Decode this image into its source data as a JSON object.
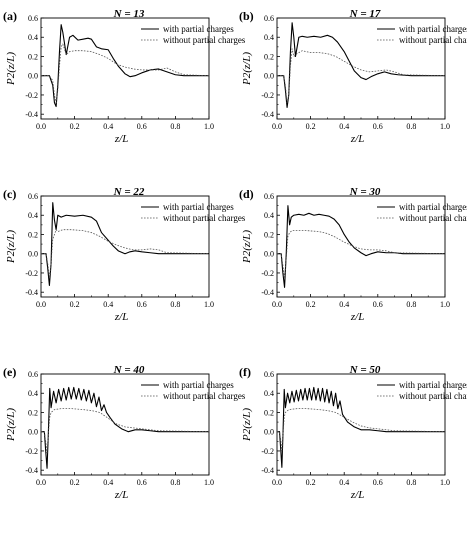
{
  "figure": {
    "xlabel": "z/L",
    "ylabel": "P2(z/L)",
    "xticks": [
      "0.0",
      "0.2",
      "0.4",
      "0.6",
      "0.8",
      "1.0"
    ],
    "yticks": [
      "-0.4",
      "-0.2",
      "0.0",
      "0.2",
      "0.4",
      "0.6"
    ],
    "xlim": [
      0,
      1
    ],
    "ylim": [
      -0.45,
      0.6
    ],
    "legend": [
      "with partial charges",
      "without partial charges"
    ],
    "colors": {
      "with": "#000000",
      "without": "#555555",
      "axis": "#000000"
    }
  },
  "chart_data": [
    {
      "type": "line",
      "panel": "(a)",
      "title": "N = 13",
      "xlabel": "z/L",
      "ylabel": "P2(z/L)",
      "xlim": [
        0,
        1
      ],
      "ylim": [
        -0.45,
        0.6
      ],
      "series": [
        {
          "name": "with partial charges",
          "style": "solid",
          "x": [
            0,
            0.05,
            0.07,
            0.08,
            0.09,
            0.1,
            0.11,
            0.12,
            0.13,
            0.15,
            0.17,
            0.19,
            0.22,
            0.25,
            0.28,
            0.3,
            0.33,
            0.36,
            0.4,
            0.43,
            0.46,
            0.5,
            0.53,
            0.56,
            0.6,
            0.65,
            0.7,
            0.75,
            0.8,
            0.85,
            1.0
          ],
          "y": [
            0,
            0,
            -0.1,
            -0.28,
            -0.32,
            -0.1,
            0.25,
            0.53,
            0.45,
            0.22,
            0.4,
            0.42,
            0.37,
            0.38,
            0.39,
            0.38,
            0.3,
            0.28,
            0.27,
            0.18,
            0.1,
            0.02,
            -0.01,
            0.0,
            0.03,
            0.06,
            0.07,
            0.04,
            0.01,
            0.0,
            0.0
          ]
        },
        {
          "name": "without partial charges",
          "style": "dotted",
          "x": [
            0,
            0.05,
            0.07,
            0.08,
            0.09,
            0.1,
            0.11,
            0.12,
            0.13,
            0.15,
            0.17,
            0.2,
            0.25,
            0.3,
            0.35,
            0.4,
            0.45,
            0.5,
            0.55,
            0.6,
            0.65,
            0.7,
            0.75,
            0.8,
            0.85,
            1.0
          ],
          "y": [
            0,
            0,
            -0.05,
            -0.2,
            -0.28,
            -0.15,
            0.1,
            0.3,
            0.33,
            0.22,
            0.25,
            0.26,
            0.26,
            0.25,
            0.22,
            0.18,
            0.12,
            0.09,
            0.07,
            0.06,
            0.06,
            0.06,
            0.08,
            0.04,
            0.01,
            0.0
          ]
        }
      ]
    },
    {
      "type": "line",
      "panel": "(b)",
      "title": "N = 17",
      "xlabel": "z/L",
      "ylabel": "P2(z/L)",
      "xlim": [
        0,
        1
      ],
      "ylim": [
        -0.45,
        0.6
      ],
      "series": [
        {
          "name": "with partial charges",
          "style": "solid",
          "x": [
            0,
            0.04,
            0.05,
            0.06,
            0.07,
            0.08,
            0.09,
            0.1,
            0.11,
            0.13,
            0.15,
            0.18,
            0.22,
            0.26,
            0.3,
            0.33,
            0.36,
            0.4,
            0.43,
            0.46,
            0.5,
            0.53,
            0.56,
            0.6,
            0.64,
            0.68,
            0.72,
            0.8,
            1.0
          ],
          "y": [
            0,
            0,
            -0.15,
            -0.33,
            -0.2,
            0.25,
            0.55,
            0.4,
            0.2,
            0.4,
            0.41,
            0.4,
            0.41,
            0.4,
            0.42,
            0.4,
            0.35,
            0.25,
            0.15,
            0.05,
            -0.02,
            -0.04,
            -0.01,
            0.02,
            0.04,
            0.02,
            0.01,
            0.0,
            0.0
          ]
        },
        {
          "name": "without partial charges",
          "style": "dotted",
          "x": [
            0,
            0.04,
            0.05,
            0.06,
            0.07,
            0.08,
            0.09,
            0.1,
            0.12,
            0.15,
            0.2,
            0.25,
            0.3,
            0.35,
            0.4,
            0.45,
            0.5,
            0.55,
            0.6,
            0.65,
            0.7,
            0.75,
            1.0
          ],
          "y": [
            0,
            0,
            -0.1,
            -0.28,
            -0.2,
            0.1,
            0.28,
            0.2,
            0.23,
            0.26,
            0.24,
            0.24,
            0.23,
            0.2,
            0.15,
            0.1,
            0.06,
            0.04,
            0.05,
            0.06,
            0.04,
            0.01,
            0.0
          ]
        }
      ]
    },
    {
      "type": "line",
      "panel": "(c)",
      "title": "N = 22",
      "xlabel": "z/L",
      "ylabel": "P2(z/L)",
      "xlim": [
        0,
        1
      ],
      "ylim": [
        -0.45,
        0.6
      ],
      "series": [
        {
          "name": "with partial charges",
          "style": "solid",
          "x": [
            0,
            0.03,
            0.04,
            0.05,
            0.06,
            0.07,
            0.08,
            0.09,
            0.1,
            0.12,
            0.15,
            0.2,
            0.25,
            0.3,
            0.33,
            0.36,
            0.4,
            0.43,
            0.46,
            0.5,
            0.53,
            0.56,
            0.6,
            0.65,
            0.7,
            0.75,
            1.0
          ],
          "y": [
            0,
            0,
            -0.15,
            -0.33,
            -0.1,
            0.53,
            0.35,
            0.25,
            0.4,
            0.38,
            0.4,
            0.39,
            0.4,
            0.38,
            0.34,
            0.22,
            0.14,
            0.08,
            0.03,
            0.0,
            0.02,
            0.03,
            0.02,
            0.01,
            0.0,
            0.0,
            0.0
          ]
        },
        {
          "name": "without partial charges",
          "style": "dotted",
          "x": [
            0,
            0.03,
            0.04,
            0.05,
            0.06,
            0.07,
            0.08,
            0.09,
            0.1,
            0.13,
            0.18,
            0.25,
            0.3,
            0.35,
            0.4,
            0.45,
            0.5,
            0.55,
            0.6,
            0.65,
            0.7,
            0.75,
            1.0
          ],
          "y": [
            0,
            0,
            -0.1,
            -0.25,
            -0.1,
            0.15,
            0.2,
            0.25,
            0.23,
            0.25,
            0.25,
            0.24,
            0.22,
            0.18,
            0.13,
            0.09,
            0.06,
            0.04,
            0.04,
            0.05,
            0.04,
            0.01,
            0.0
          ]
        }
      ]
    },
    {
      "type": "line",
      "panel": "(d)",
      "title": "N = 30",
      "xlabel": "z/L",
      "ylabel": "P2(z/L)",
      "xlim": [
        0,
        1
      ],
      "ylim": [
        -0.45,
        0.6
      ],
      "series": [
        {
          "name": "with partial charges",
          "style": "solid",
          "x": [
            0,
            0.025,
            0.035,
            0.045,
            0.055,
            0.065,
            0.075,
            0.085,
            0.1,
            0.13,
            0.16,
            0.19,
            0.22,
            0.25,
            0.28,
            0.31,
            0.34,
            0.37,
            0.4,
            0.43,
            0.46,
            0.5,
            0.53,
            0.56,
            0.6,
            0.65,
            0.7,
            0.75,
            1.0
          ],
          "y": [
            0,
            0,
            -0.2,
            -0.35,
            0.0,
            0.5,
            0.3,
            0.38,
            0.4,
            0.41,
            0.4,
            0.42,
            0.4,
            0.41,
            0.4,
            0.39,
            0.36,
            0.3,
            0.2,
            0.12,
            0.06,
            0.01,
            -0.02,
            0.0,
            0.02,
            0.01,
            0.01,
            0.0,
            0.0
          ]
        },
        {
          "name": "without partial charges",
          "style": "dotted",
          "x": [
            0,
            0.025,
            0.035,
            0.045,
            0.055,
            0.065,
            0.075,
            0.09,
            0.12,
            0.18,
            0.25,
            0.3,
            0.35,
            0.4,
            0.45,
            0.5,
            0.55,
            0.6,
            0.65,
            0.7,
            1.0
          ],
          "y": [
            0,
            0,
            -0.12,
            -0.25,
            -0.05,
            0.18,
            0.22,
            0.24,
            0.24,
            0.24,
            0.23,
            0.21,
            0.17,
            0.12,
            0.08,
            0.05,
            0.04,
            0.04,
            0.03,
            0.01,
            0.0
          ]
        }
      ]
    },
    {
      "type": "line",
      "panel": "(e)",
      "title": "N = 40",
      "xlabel": "z/L",
      "ylabel": "P2(z/L)",
      "xlim": [
        0,
        1
      ],
      "ylim": [
        -0.45,
        0.6
      ],
      "series": [
        {
          "name": "with partial charges",
          "style": "solid",
          "x": [
            0,
            0.02,
            0.028,
            0.036,
            0.044,
            0.052,
            0.06,
            0.075,
            0.09,
            0.105,
            0.12,
            0.135,
            0.15,
            0.165,
            0.18,
            0.195,
            0.21,
            0.225,
            0.24,
            0.255,
            0.27,
            0.285,
            0.3,
            0.315,
            0.33,
            0.345,
            0.36,
            0.375,
            0.39,
            0.41,
            0.44,
            0.48,
            0.52,
            0.56,
            0.6,
            0.65,
            0.7,
            1.0
          ],
          "y": [
            0,
            0,
            -0.2,
            -0.38,
            0.0,
            0.45,
            0.25,
            0.42,
            0.3,
            0.44,
            0.32,
            0.45,
            0.33,
            0.46,
            0.34,
            0.46,
            0.34,
            0.45,
            0.33,
            0.44,
            0.32,
            0.43,
            0.3,
            0.4,
            0.26,
            0.36,
            0.22,
            0.28,
            0.2,
            0.15,
            0.08,
            0.03,
            0.0,
            0.02,
            0.02,
            0.01,
            0.0,
            0.0
          ]
        },
        {
          "name": "without partial charges",
          "style": "dotted",
          "x": [
            0,
            0.02,
            0.028,
            0.036,
            0.044,
            0.052,
            0.06,
            0.08,
            0.12,
            0.18,
            0.25,
            0.3,
            0.35,
            0.4,
            0.45,
            0.5,
            0.55,
            0.6,
            0.65,
            0.7,
            1.0
          ],
          "y": [
            0,
            0,
            -0.1,
            -0.22,
            -0.02,
            0.15,
            0.2,
            0.23,
            0.24,
            0.24,
            0.23,
            0.22,
            0.2,
            0.14,
            0.08,
            0.05,
            0.04,
            0.03,
            0.02,
            0.01,
            0.0
          ]
        }
      ]
    },
    {
      "type": "line",
      "panel": "(f)",
      "title": "N = 50",
      "xlabel": "z/L",
      "ylabel": "P2(z/L)",
      "xlim": [
        0,
        1
      ],
      "ylim": [
        -0.45,
        0.6
      ],
      "series": [
        {
          "name": "with partial charges",
          "style": "solid",
          "x": [
            0,
            0.015,
            0.022,
            0.029,
            0.036,
            0.043,
            0.05,
            0.063,
            0.076,
            0.089,
            0.102,
            0.115,
            0.128,
            0.141,
            0.154,
            0.167,
            0.18,
            0.193,
            0.206,
            0.219,
            0.232,
            0.245,
            0.258,
            0.271,
            0.284,
            0.297,
            0.31,
            0.323,
            0.336,
            0.349,
            0.362,
            0.375,
            0.39,
            0.42,
            0.46,
            0.5,
            0.55,
            0.6,
            0.65,
            1.0
          ],
          "y": [
            0,
            0,
            -0.18,
            -0.37,
            0.0,
            0.44,
            0.25,
            0.4,
            0.3,
            0.42,
            0.31,
            0.43,
            0.32,
            0.44,
            0.33,
            0.45,
            0.33,
            0.45,
            0.33,
            0.46,
            0.33,
            0.45,
            0.32,
            0.45,
            0.31,
            0.44,
            0.3,
            0.42,
            0.27,
            0.4,
            0.24,
            0.32,
            0.18,
            0.1,
            0.05,
            0.02,
            0.02,
            0.01,
            0.0,
            0.0
          ]
        },
        {
          "name": "without partial charges",
          "style": "dotted",
          "x": [
            0,
            0.015,
            0.022,
            0.029,
            0.036,
            0.043,
            0.05,
            0.07,
            0.12,
            0.18,
            0.25,
            0.3,
            0.35,
            0.4,
            0.45,
            0.5,
            0.55,
            0.6,
            0.65,
            0.7,
            1.0
          ],
          "y": [
            0,
            0,
            -0.08,
            -0.2,
            -0.02,
            0.15,
            0.2,
            0.23,
            0.24,
            0.24,
            0.23,
            0.22,
            0.2,
            0.15,
            0.1,
            0.06,
            0.04,
            0.03,
            0.02,
            0.01,
            0.0
          ]
        }
      ]
    }
  ]
}
